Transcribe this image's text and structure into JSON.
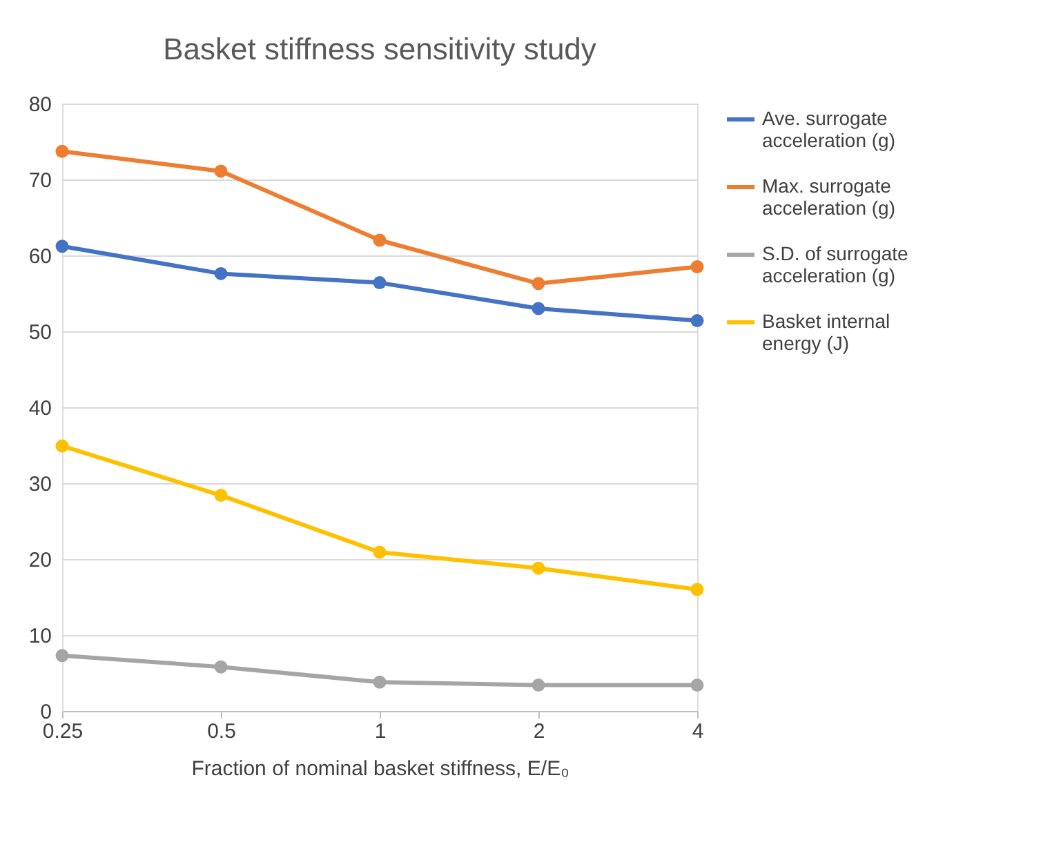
{
  "chart_data": {
    "type": "line",
    "title": "Basket stiffness sensitivity study",
    "xlabel": "Fraction of nominal basket stiffness, E/E₀",
    "categories": [
      "0.25",
      "0.5",
      "1",
      "2",
      "4"
    ],
    "series": [
      {
        "name": "Ave. surrogate acceleration (g)",
        "color": "#4472c4",
        "values": [
          61.2,
          57.6,
          56.4,
          53.0,
          51.4
        ]
      },
      {
        "name": "Max. surrogate acceleration (g)",
        "color": "#ed7d31",
        "values": [
          73.7,
          71.1,
          62.0,
          56.3,
          58.5
        ]
      },
      {
        "name": "S.D. of surrogate acceleration (g)",
        "color": "#a5a5a5",
        "values": [
          7.3,
          5.8,
          3.8,
          3.4,
          3.4
        ]
      },
      {
        "name": "Basket internal energy (J)",
        "color": "#ffc000",
        "values": [
          34.9,
          28.4,
          20.9,
          18.8,
          16.0
        ]
      }
    ],
    "ylim": [
      0,
      80
    ],
    "yticks": [
      0,
      10,
      20,
      30,
      40,
      50,
      60,
      70,
      80
    ],
    "grid": "y",
    "legend": "right",
    "marker": "circle",
    "line_style": "solid"
  }
}
